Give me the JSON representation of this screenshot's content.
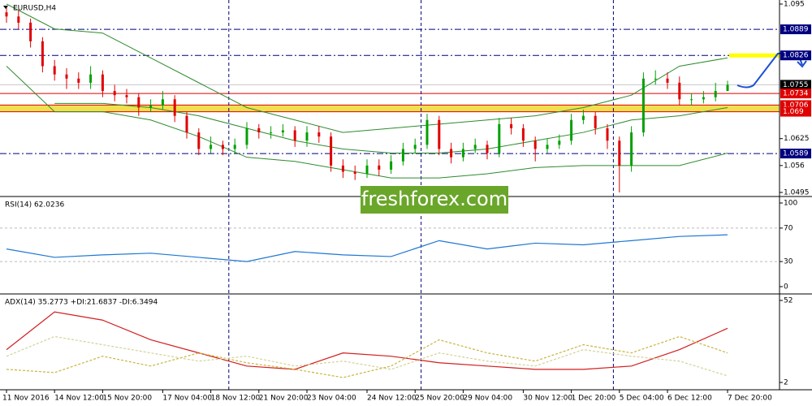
{
  "chart_data": [
    {
      "type": "candlestick",
      "title": "EURUSD,H4",
      "open": [
        1.093,
        1.092,
        1.0905,
        1.086,
        1.08,
        1.078,
        1.077,
        1.076,
        1.078,
        1.074,
        1.073,
        1.0725,
        1.07,
        1.0705,
        1.072,
        1.068,
        1.064,
        1.06,
        1.061,
        1.06,
        1.061,
        1.065,
        1.064,
        1.064,
        1.0645,
        1.062,
        1.064,
        1.063,
        1.056,
        1.0545,
        1.054,
        1.056,
        1.055,
        1.057,
        1.06,
        1.061,
        1.067,
        1.06,
        1.058,
        1.06,
        1.061,
        1.059,
        1.066,
        1.065,
        1.062,
        1.06,
        1.061,
        1.062,
        1.067,
        1.068,
        1.065,
        1.062,
        1.056,
        1.064,
        1.077,
        1.077,
        1.076,
        1.072,
        1.072,
        1.0725,
        1.074
      ],
      "high": [
        1.0945,
        1.0935,
        1.0915,
        1.087,
        1.0815,
        1.0795,
        1.0785,
        1.08,
        1.079,
        1.0755,
        1.0745,
        1.0735,
        1.072,
        1.074,
        1.073,
        1.069,
        1.065,
        1.063,
        1.062,
        1.0625,
        1.0665,
        1.066,
        1.0655,
        1.066,
        1.0655,
        1.0655,
        1.0655,
        1.064,
        1.0575,
        1.056,
        1.0575,
        1.0575,
        1.0585,
        1.0615,
        1.0625,
        1.0685,
        1.068,
        1.0615,
        1.0615,
        1.0625,
        1.062,
        1.0675,
        1.0675,
        1.066,
        1.063,
        1.0625,
        1.0635,
        1.0685,
        1.0695,
        1.069,
        1.066,
        1.063,
        1.0655,
        1.0785,
        1.079,
        1.0785,
        1.0775,
        1.0735,
        1.074,
        1.076,
        1.0765
      ],
      "low": [
        1.0905,
        1.089,
        1.0845,
        1.0785,
        1.0765,
        1.0745,
        1.0745,
        1.0745,
        1.0725,
        1.0715,
        1.071,
        1.068,
        1.069,
        1.0695,
        1.0665,
        1.0625,
        1.0585,
        1.059,
        1.0585,
        1.059,
        1.06,
        1.0625,
        1.0625,
        1.063,
        1.0605,
        1.0605,
        1.0615,
        1.0545,
        1.053,
        1.0525,
        1.053,
        1.0535,
        1.054,
        1.056,
        1.059,
        1.06,
        1.0585,
        1.0565,
        1.057,
        1.059,
        1.0575,
        1.058,
        1.0635,
        1.0605,
        1.057,
        1.059,
        1.06,
        1.061,
        1.066,
        1.0635,
        1.06,
        1.0495,
        1.0545,
        1.063,
        1.0755,
        1.0745,
        1.0705,
        1.0705,
        1.071,
        1.0715,
        1.074
      ],
      "close": [
        1.092,
        1.0905,
        1.086,
        1.08,
        1.078,
        1.077,
        1.076,
        1.078,
        1.074,
        1.073,
        1.0725,
        1.07,
        1.0705,
        1.072,
        1.068,
        1.064,
        1.06,
        1.061,
        1.06,
        1.061,
        1.065,
        1.064,
        1.064,
        1.0645,
        1.062,
        1.064,
        1.063,
        1.056,
        1.0545,
        1.054,
        1.056,
        1.055,
        1.057,
        1.06,
        1.061,
        1.067,
        1.06,
        1.058,
        1.06,
        1.061,
        1.059,
        1.066,
        1.065,
        1.062,
        1.06,
        1.061,
        1.062,
        1.067,
        1.068,
        1.065,
        1.062,
        1.056,
        1.064,
        1.077,
        1.077,
        1.076,
        1.072,
        1.072,
        1.0725,
        1.074,
        1.0755
      ],
      "up_color": "#00a000",
      "down_color": "#e00000",
      "xticks": [
        {
          "value": 0,
          "label": "11 Nov 2016"
        },
        {
          "value": 4,
          "label": "14 Nov 12:00"
        },
        {
          "value": 8,
          "label": "15 Nov 20:00"
        },
        {
          "value": 13,
          "label": "17 Nov 04:00"
        },
        {
          "value": 17,
          "label": "18 Nov 12:00"
        },
        {
          "value": 21,
          "label": "21 Nov 20:00"
        },
        {
          "value": 25,
          "label": "23 Nov 04:00"
        },
        {
          "value": 30,
          "label": "24 Nov 12:00"
        },
        {
          "value": 34,
          "label": "25 Nov 20:00"
        },
        {
          "value": 38,
          "label": "29 Nov 04:00"
        },
        {
          "value": 43,
          "label": "30 Nov 12:00"
        },
        {
          "value": 47,
          "label": "1 Dec 20:00"
        },
        {
          "value": 51,
          "label": "5 Dec 04:00"
        },
        {
          "value": 55,
          "label": "6 Dec 12:00"
        },
        {
          "value": 60,
          "label": "7 Dec 20:00"
        }
      ],
      "separators": [
        18.5,
        34.5,
        50.5
      ],
      "ylim": [
        1.0495,
        1.095
      ],
      "yticks": [
        1.095,
        1.0625,
        1.056,
        1.0495
      ],
      "levels": [
        {
          "value": 1.0889,
          "color": "#00007f",
          "style": "dashdot"
        },
        {
          "value": 1.0826,
          "color": "#00007f",
          "style": "dashdot",
          "highlight": "#ffff00"
        },
        {
          "value": 1.0755,
          "color": "#c8c8c8",
          "style": "solid",
          "label_color": "#000000"
        },
        {
          "value": 1.0734,
          "color": "#e00000",
          "style": "solid"
        },
        {
          "value": 1.0706,
          "color": "#e00000",
          "style": "solid",
          "band_color": "#f0e050"
        },
        {
          "value": 1.069,
          "color": "#e00000",
          "style": "solid"
        },
        {
          "value": 1.0589,
          "color": "#00007f",
          "style": "dashdot"
        }
      ],
      "bands": {
        "color": "#2e8b2e",
        "x": [
          0,
          4,
          8,
          12,
          16,
          20,
          24,
          28,
          32,
          36,
          40,
          44,
          48,
          52,
          56,
          60
        ],
        "upper": [
          1.095,
          1.089,
          1.088,
          1.082,
          1.076,
          1.07,
          1.067,
          1.064,
          1.065,
          1.066,
          1.067,
          1.068,
          1.07,
          1.073,
          1.08,
          1.082
        ],
        "middle": [
          null,
          1.071,
          1.071,
          1.07,
          1.068,
          1.065,
          1.062,
          1.06,
          1.059,
          1.059,
          1.06,
          1.062,
          1.064,
          1.067,
          1.068,
          1.07
        ],
        "lower": [
          1.08,
          1.069,
          1.069,
          1.067,
          1.063,
          1.058,
          1.057,
          1.055,
          1.053,
          1.053,
          1.054,
          1.0555,
          1.056,
          1.056,
          1.056,
          1.059
        ]
      }
    },
    {
      "type": "line",
      "title": "RSI(14) 62.0236",
      "ylim": [
        0,
        100
      ],
      "yticks": [
        100,
        70,
        30,
        0
      ],
      "dashed_ticks": [
        70,
        30
      ],
      "series": [
        {
          "color": "#1e78d2",
          "x": [
            0,
            4,
            8,
            12,
            16,
            20,
            24,
            28,
            32,
            36,
            40,
            44,
            48,
            52,
            56,
            60
          ],
          "values": [
            45,
            35,
            38,
            40,
            35,
            30,
            42,
            38,
            36,
            55,
            45,
            52,
            50,
            55,
            60,
            62
          ]
        }
      ]
    },
    {
      "type": "line",
      "title": "ADX(14) 35.2773 +DI:21.6837 -DI:6.3494",
      "ylim": [
        2,
        52
      ],
      "yticks": [
        52,
        2
      ],
      "series": [
        {
          "color": "#d21e1e",
          "x": [
            0,
            4,
            8,
            12,
            16,
            20,
            24,
            28,
            32,
            36,
            40,
            44,
            48,
            52,
            56,
            60
          ],
          "values": [
            22,
            45,
            40,
            28,
            20,
            12,
            10,
            20,
            18,
            14,
            12,
            10,
            10,
            12,
            22,
            35
          ],
          "dash": false
        },
        {
          "color": "#c8b43c",
          "x": [
            0,
            4,
            8,
            12,
            16,
            20,
            24,
            28,
            32,
            36,
            40,
            44,
            48,
            52,
            56,
            60
          ],
          "values": [
            10,
            8,
            18,
            12,
            20,
            14,
            10,
            5,
            12,
            28,
            20,
            15,
            25,
            20,
            30,
            20
          ],
          "dash": true
        },
        {
          "color": "#d2d296",
          "x": [
            0,
            4,
            8,
            12,
            16,
            20,
            24,
            28,
            32,
            36,
            40,
            44,
            48,
            52,
            56,
            60
          ],
          "values": [
            18,
            30,
            25,
            20,
            15,
            18,
            12,
            15,
            10,
            20,
            15,
            12,
            22,
            18,
            15,
            6
          ],
          "dash": true
        }
      ]
    }
  ],
  "watermark": "freshforex.com"
}
